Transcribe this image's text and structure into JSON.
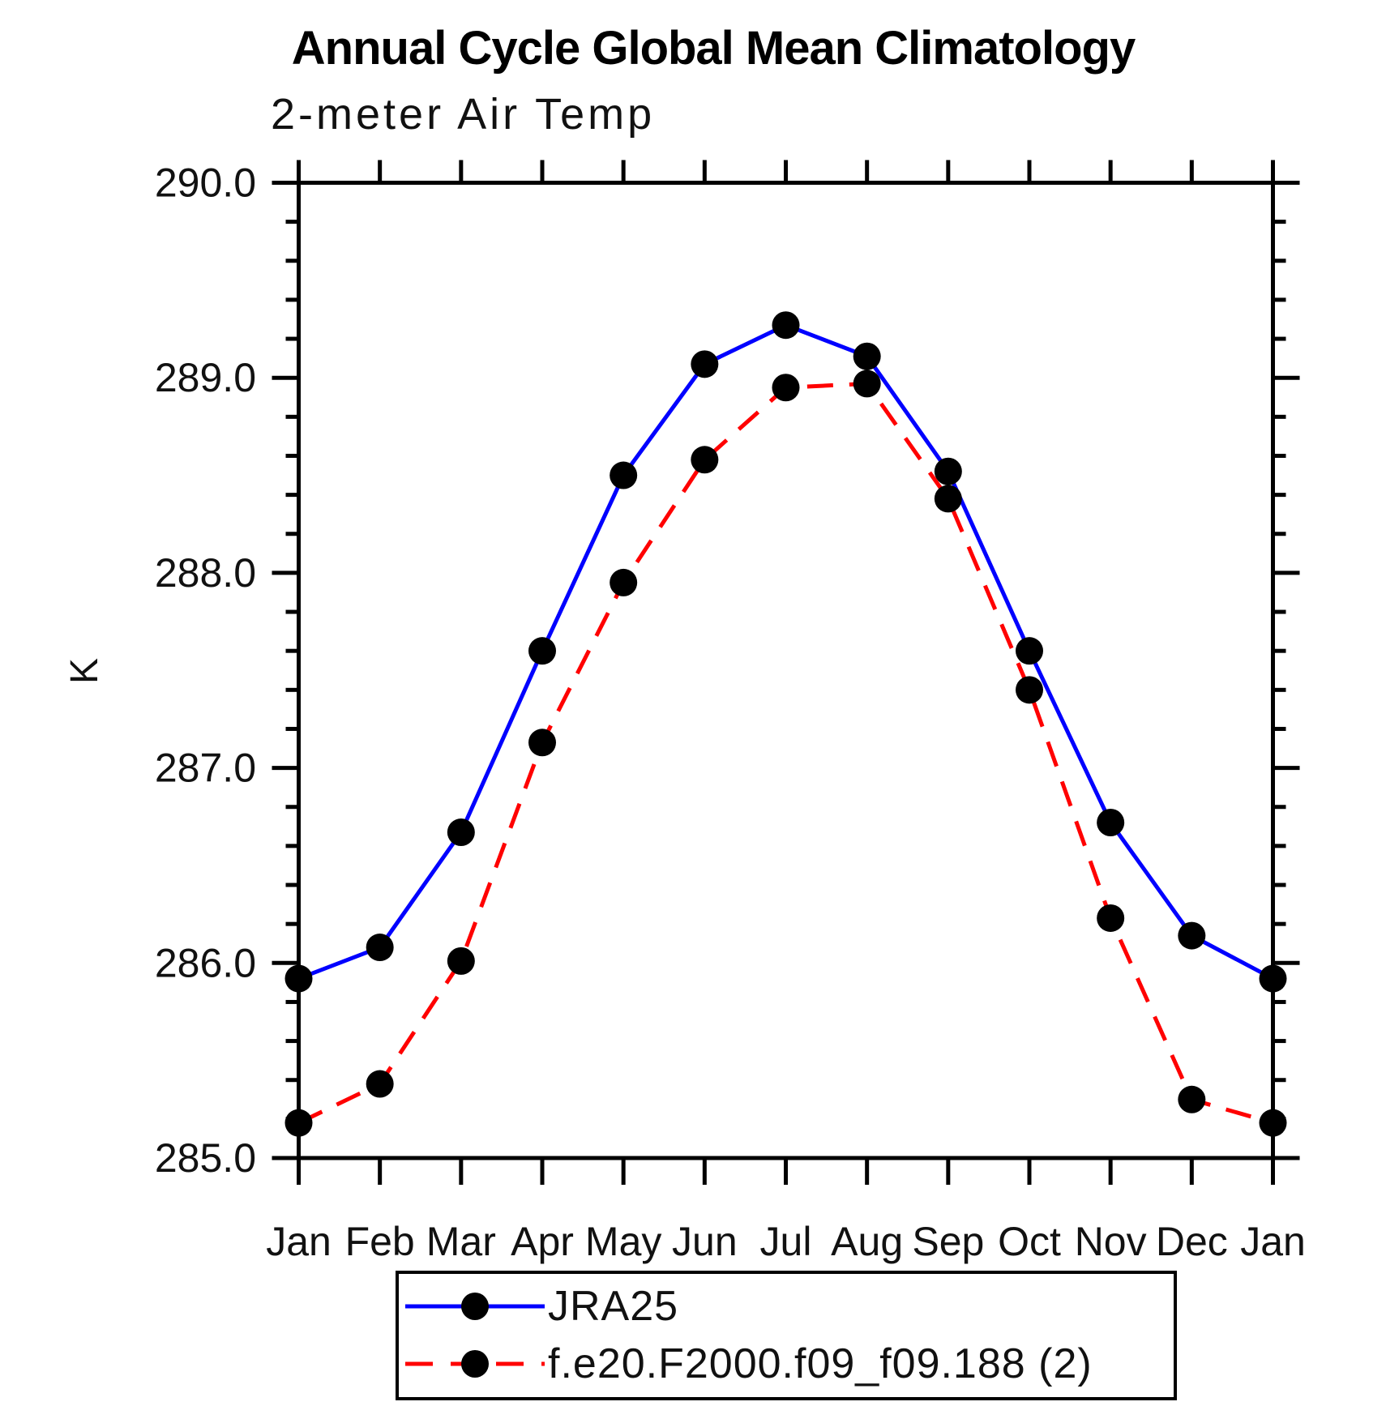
{
  "chart_data": {
    "type": "line",
    "title": "Annual Cycle Global Mean Climatology",
    "subtitle": "2-meter Air Temp",
    "ylabel": "K",
    "ylim": [
      285.0,
      290.0
    ],
    "y_major_tick_interval": 1.0,
    "y_minor_tick_interval": 0.2,
    "y_tick_labels": [
      "285.0",
      "286.0",
      "287.0",
      "288.0",
      "289.0",
      "290.0"
    ],
    "x_tick_labels": [
      "Jan",
      "Feb",
      "Mar",
      "Apr",
      "May",
      "Jun",
      "Jul",
      "Aug",
      "Sep",
      "Oct",
      "Nov",
      "Dec",
      "Jan"
    ],
    "grid": false,
    "legend_position": "bottom-center",
    "axis_color": "#000000",
    "series": [
      {
        "name": "JRA25",
        "color": "#0000ff",
        "line_style": "solid",
        "marker": "filled-circle",
        "marker_color": "#000000",
        "values": [
          285.92,
          286.08,
          286.67,
          287.6,
          288.5,
          289.07,
          289.27,
          289.11,
          288.52,
          287.6,
          286.72,
          286.14,
          285.92
        ]
      },
      {
        "name": "f.e20.F2000.f09_f09.188 (2)",
        "color": "#ff0000",
        "line_style": "dashed",
        "marker": "filled-circle",
        "marker_color": "#000000",
        "values": [
          285.18,
          285.38,
          286.01,
          287.13,
          287.95,
          288.58,
          288.95,
          288.97,
          288.38,
          287.4,
          286.23,
          285.3,
          285.18
        ]
      }
    ]
  }
}
